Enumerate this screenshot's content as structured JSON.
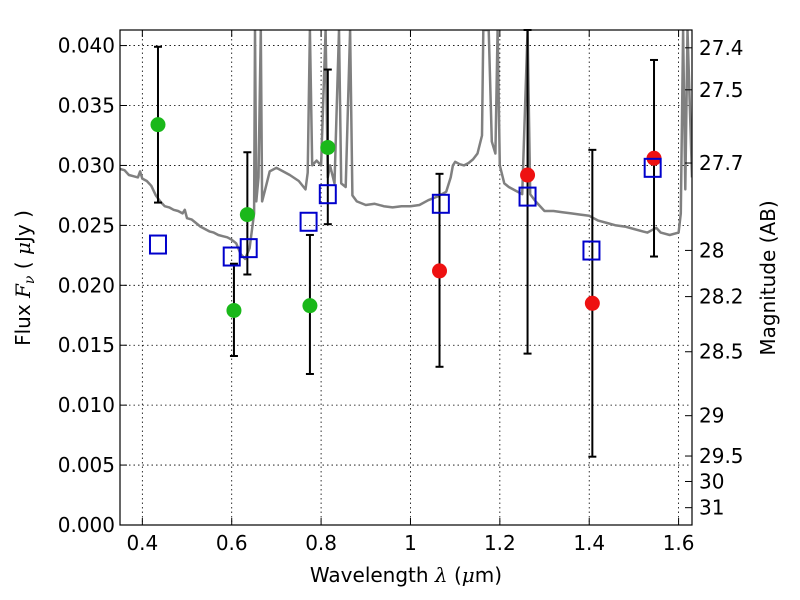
{
  "chart_data": {
    "type": "scatter",
    "xlim": [
      0.35,
      1.63
    ],
    "ylim": [
      0.0,
      0.0413
    ],
    "grid": true,
    "xlabel": {
      "main": "Wavelength  ",
      "symbol": "λ",
      "open": " (",
      "unit_symbol": "μ",
      "unit": "m)"
    },
    "ylabel": {
      "main": "Flux  ",
      "symbol": "F",
      "subscript": "ν",
      "open": "  ( ",
      "unit_symbol": "μ",
      "unit": "Jy )"
    },
    "y2label": "Magnitude (AB)",
    "xticks": [
      {
        "v": 0.4,
        "label": "0.4"
      },
      {
        "v": 0.6,
        "label": "0.6"
      },
      {
        "v": 0.8,
        "label": "0.8"
      },
      {
        "v": 1.0,
        "label": "1"
      },
      {
        "v": 1.2,
        "label": "1.2"
      },
      {
        "v": 1.4,
        "label": "1.4"
      },
      {
        "v": 1.6,
        "label": "1.6"
      }
    ],
    "yticks": [
      {
        "v": 0.0,
        "label": "0.000"
      },
      {
        "v": 0.005,
        "label": "0.005"
      },
      {
        "v": 0.01,
        "label": "0.010"
      },
      {
        "v": 0.015,
        "label": "0.015"
      },
      {
        "v": 0.02,
        "label": "0.020"
      },
      {
        "v": 0.025,
        "label": "0.025"
      },
      {
        "v": 0.03,
        "label": "0.030"
      },
      {
        "v": 0.035,
        "label": "0.035"
      },
      {
        "v": 0.04,
        "label": "0.040"
      }
    ],
    "y2ticks": [
      {
        "v": 27.4,
        "label": "27.4"
      },
      {
        "v": 27.5,
        "label": "27.5"
      },
      {
        "v": 27.7,
        "label": "27.7"
      },
      {
        "v": 28.0,
        "label": "28"
      },
      {
        "v": 28.2,
        "label": "28.2"
      },
      {
        "v": 28.5,
        "label": "28.5"
      },
      {
        "v": 29.0,
        "label": "29"
      },
      {
        "v": 29.5,
        "label": "29.5"
      },
      {
        "v": 30.0,
        "label": "30"
      },
      {
        "v": 31.0,
        "label": "31"
      }
    ],
    "colors": {
      "green": "#1ab81a",
      "red": "#ee1111",
      "square": "#0000cc",
      "model": "#808080",
      "errorbar": "#000000"
    },
    "green_points": [
      {
        "x": 0.435,
        "y": 0.0334,
        "err_lo": 0.0269,
        "err_hi": 0.0399
      },
      {
        "x": 0.605,
        "y": 0.0179,
        "err_lo": 0.0141,
        "err_hi": 0.0218
      },
      {
        "x": 0.635,
        "y": 0.0259,
        "err_lo": 0.0209,
        "err_hi": 0.0311
      },
      {
        "x": 0.775,
        "y": 0.0183,
        "err_lo": 0.0126,
        "err_hi": 0.0242
      },
      {
        "x": 0.815,
        "y": 0.0315,
        "err_lo": 0.0251,
        "err_hi": 0.038
      }
    ],
    "red_points": [
      {
        "x": 1.065,
        "y": 0.0212,
        "err_lo": 0.0132,
        "err_hi": 0.0293
      },
      {
        "x": 1.262,
        "y": 0.0292,
        "err_lo": 0.0143,
        "err_hi": 0.0413
      },
      {
        "x": 1.407,
        "y": 0.0185,
        "err_lo": 0.0057,
        "err_hi": 0.0313
      },
      {
        "x": 1.545,
        "y": 0.0306,
        "err_lo": 0.0224,
        "err_hi": 0.0388
      }
    ],
    "squares": [
      {
        "x": 0.435,
        "y": 0.0234
      },
      {
        "x": 0.6,
        "y": 0.0224
      },
      {
        "x": 0.638,
        "y": 0.0231
      },
      {
        "x": 0.772,
        "y": 0.0253
      },
      {
        "x": 0.815,
        "y": 0.0276
      },
      {
        "x": 1.068,
        "y": 0.0268
      },
      {
        "x": 1.262,
        "y": 0.0274
      },
      {
        "x": 1.405,
        "y": 0.0229
      },
      {
        "x": 1.542,
        "y": 0.0298
      }
    ],
    "model_spectrum": [
      [
        0.35,
        0.0297
      ],
      [
        0.36,
        0.0296
      ],
      [
        0.37,
        0.0292
      ],
      [
        0.38,
        0.0291
      ],
      [
        0.39,
        0.029
      ],
      [
        0.395,
        0.0295
      ],
      [
        0.4,
        0.0289
      ],
      [
        0.41,
        0.0287
      ],
      [
        0.42,
        0.0283
      ],
      [
        0.43,
        0.0275
      ],
      [
        0.44,
        0.027
      ],
      [
        0.45,
        0.0266
      ],
      [
        0.46,
        0.0265
      ],
      [
        0.47,
        0.0263
      ],
      [
        0.48,
        0.0262
      ],
      [
        0.49,
        0.026
      ],
      [
        0.495,
        0.0263
      ],
      [
        0.5,
        0.0256
      ],
      [
        0.51,
        0.0255
      ],
      [
        0.52,
        0.0252
      ],
      [
        0.53,
        0.0249
      ],
      [
        0.54,
        0.0247
      ],
      [
        0.55,
        0.0245
      ],
      [
        0.56,
        0.0244
      ],
      [
        0.57,
        0.0242
      ],
      [
        0.58,
        0.0241
      ],
      [
        0.59,
        0.024
      ],
      [
        0.6,
        0.0238
      ],
      [
        0.61,
        0.0235
      ],
      [
        0.62,
        0.0226
      ],
      [
        0.63,
        0.0222
      ],
      [
        0.64,
        0.0231
      ],
      [
        0.65,
        0.026
      ],
      [
        0.652,
        0.0413
      ],
      [
        0.655,
        0.027
      ],
      [
        0.66,
        0.029
      ],
      [
        0.665,
        0.0413
      ],
      [
        0.668,
        0.027
      ],
      [
        0.675,
        0.028
      ],
      [
        0.685,
        0.0295
      ],
      [
        0.7,
        0.0298
      ],
      [
        0.715,
        0.0295
      ],
      [
        0.73,
        0.0292
      ],
      [
        0.75,
        0.0287
      ],
      [
        0.765,
        0.028
      ],
      [
        0.77,
        0.0294
      ],
      [
        0.775,
        0.0413
      ],
      [
        0.78,
        0.03
      ],
      [
        0.79,
        0.0304
      ],
      [
        0.8,
        0.03
      ],
      [
        0.81,
        0.0413
      ],
      [
        0.815,
        0.029
      ],
      [
        0.82,
        0.03
      ],
      [
        0.83,
        0.0285
      ],
      [
        0.84,
        0.0413
      ],
      [
        0.845,
        0.0285
      ],
      [
        0.855,
        0.0282
      ],
      [
        0.865,
        0.0413
      ],
      [
        0.87,
        0.0275
      ],
      [
        0.88,
        0.027
      ],
      [
        0.9,
        0.0267
      ],
      [
        0.92,
        0.0268
      ],
      [
        0.94,
        0.0266
      ],
      [
        0.96,
        0.0265
      ],
      [
        0.98,
        0.0266
      ],
      [
        1.0,
        0.0266
      ],
      [
        1.02,
        0.0267
      ],
      [
        1.04,
        0.0271
      ],
      [
        1.06,
        0.0274
      ],
      [
        1.08,
        0.0278
      ],
      [
        1.09,
        0.029
      ],
      [
        1.095,
        0.03
      ],
      [
        1.1,
        0.0303
      ],
      [
        1.11,
        0.0301
      ],
      [
        1.12,
        0.03
      ],
      [
        1.13,
        0.0302
      ],
      [
        1.14,
        0.0305
      ],
      [
        1.15,
        0.031
      ],
      [
        1.16,
        0.0325
      ],
      [
        1.163,
        0.0413
      ],
      [
        1.175,
        0.0413
      ],
      [
        1.182,
        0.032
      ],
      [
        1.19,
        0.031
      ],
      [
        1.195,
        0.0413
      ],
      [
        1.2,
        0.03
      ],
      [
        1.21,
        0.0285
      ],
      [
        1.22,
        0.0282
      ],
      [
        1.235,
        0.0279
      ],
      [
        1.25,
        0.0276
      ],
      [
        1.262,
        0.0413
      ],
      [
        1.268,
        0.0276
      ],
      [
        1.28,
        0.027
      ],
      [
        1.3,
        0.0262
      ],
      [
        1.32,
        0.0262
      ],
      [
        1.34,
        0.0261
      ],
      [
        1.36,
        0.026
      ],
      [
        1.38,
        0.0259
      ],
      [
        1.4,
        0.0258
      ],
      [
        1.42,
        0.0254
      ],
      [
        1.44,
        0.0252
      ],
      [
        1.46,
        0.025
      ],
      [
        1.48,
        0.0249
      ],
      [
        1.5,
        0.0247
      ],
      [
        1.52,
        0.0245
      ],
      [
        1.53,
        0.0244
      ],
      [
        1.54,
        0.0246
      ],
      [
        1.55,
        0.0248
      ],
      [
        1.56,
        0.0244
      ],
      [
        1.58,
        0.0242
      ],
      [
        1.6,
        0.0244
      ],
      [
        1.605,
        0.026
      ],
      [
        1.61,
        0.0413
      ],
      [
        1.615,
        0.028
      ],
      [
        1.62,
        0.0413
      ],
      [
        1.63,
        0.029
      ]
    ]
  }
}
